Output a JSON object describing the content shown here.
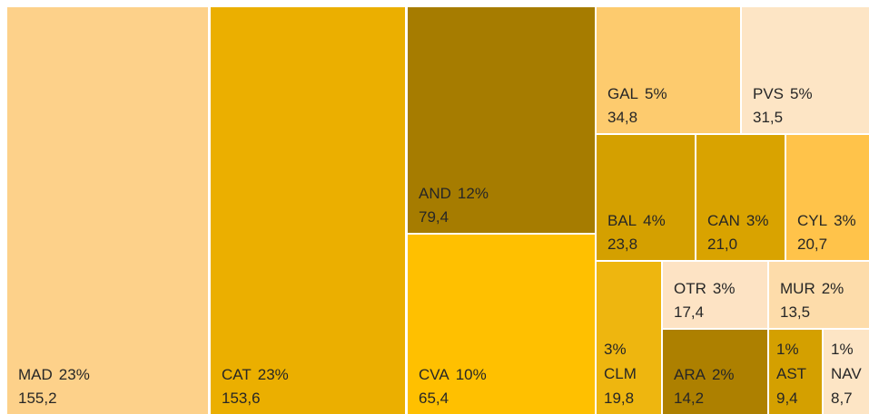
{
  "chart_data": {
    "type": "treemap",
    "categories": [
      "MAD",
      "CAT",
      "AND",
      "CVA",
      "GAL",
      "PVS",
      "BAL",
      "CAN",
      "CYL",
      "CLM",
      "OTR",
      "MUR",
      "ARA",
      "AST",
      "NAV"
    ],
    "values": [
      155.2,
      153.6,
      79.4,
      65.4,
      34.8,
      31.5,
      23.8,
      21.0,
      20.7,
      19.8,
      17.4,
      13.5,
      14.2,
      9.4,
      8.7
    ],
    "value_labels": [
      "155,2",
      "153,6",
      "79,4",
      "65,4",
      "34,8",
      "31,5",
      "23,8",
      "21,0",
      "20,7",
      "19,8",
      "17,4",
      "13,5",
      "14,2",
      "9,4",
      "8,7"
    ],
    "shares": [
      23,
      23,
      12,
      10,
      5,
      5,
      4,
      3,
      3,
      3,
      3,
      2,
      2,
      1,
      1
    ],
    "share_labels": [
      "23%",
      "23%",
      "12%",
      "10%",
      "5%",
      "5%",
      "4%",
      "3%",
      "3%",
      "3%",
      "3%",
      "2%",
      "2%",
      "1%",
      "1%"
    ],
    "colors": [
      "#FDD18A",
      "#EBAF00",
      "#A67C00",
      "#FFC000",
      "#FDCB6E",
      "#FDE5C5",
      "#D4A000",
      "#D9A300",
      "#FFC34A",
      "#EEB60F",
      "#FDE3C4",
      "#FDDCAA",
      "#AD8000",
      "#D4A000",
      "#FDE5C5"
    ]
  }
}
